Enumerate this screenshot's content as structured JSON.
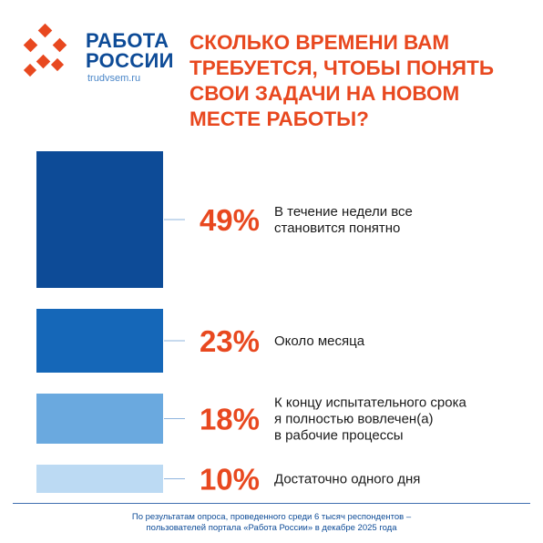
{
  "brand": {
    "name_line1": "РАБОТА",
    "name_line2": "РОССИИ",
    "site": "trudvsem.ru",
    "colors": {
      "blue": "#0d4b97",
      "orange": "#e8481f"
    }
  },
  "headline": {
    "line1": "СКОЛЬКО ВРЕМЕНИ ВАМ",
    "line2": "ТРЕБУЕТСЯ, ЧТОБЫ ПОНЯТЬ",
    "line3": "СВОИ ЗАДАЧИ НА НОВОМ",
    "line4": "МЕСТЕ РАБОТЫ?"
  },
  "chart_data": {
    "type": "bar",
    "values": [
      49,
      23,
      18,
      10
    ],
    "value_labels": [
      "49%",
      "23%",
      "18%",
      "10%"
    ],
    "categories": [
      [
        "В течение недели все",
        "становится понятно"
      ],
      [
        "Около месяца"
      ],
      [
        "К концу испытательного срока",
        "я полностью вовлечен(а)",
        "в рабочие процессы"
      ],
      [
        "Достаточно одного дня"
      ]
    ],
    "colors": [
      "#0d4b97",
      "#1567b8",
      "#6aa9df",
      "#bcdaf3"
    ],
    "label_color": "#e8481f"
  },
  "footer": {
    "line1": "По результатам опроса, проведенного среди 6 тысяч респондентов –",
    "line2": "пользователей портала «Работа России» в декабре 2025 года"
  }
}
